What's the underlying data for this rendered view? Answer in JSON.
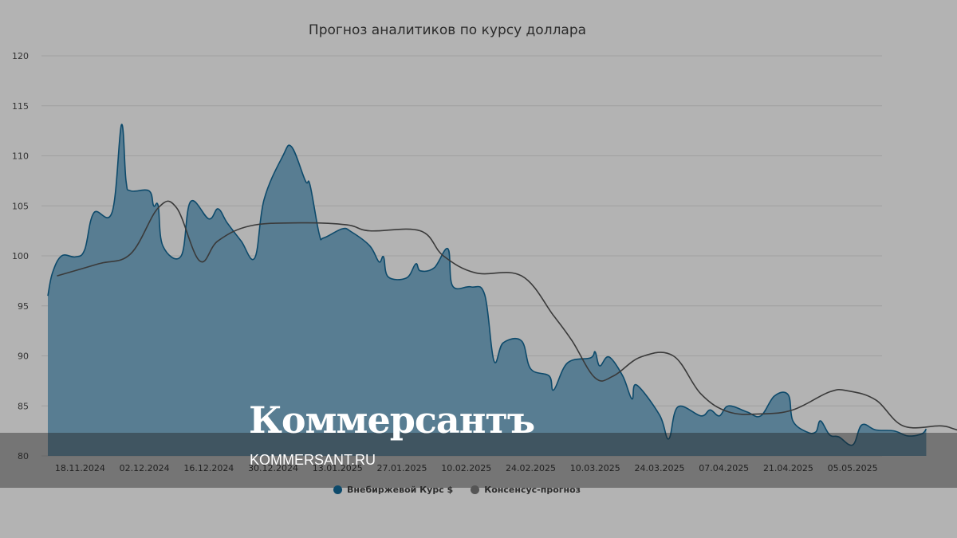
{
  "chart_data": {
    "type": "area",
    "title": "Прогноз аналитиков по курсу доллара",
    "ylim": [
      80,
      120
    ],
    "yticks": [
      "80",
      "85",
      "90",
      "95",
      "100",
      "105",
      "110",
      "115",
      "120"
    ],
    "xticks": [
      "18.11.2024",
      "02.12.2024",
      "16.12.2024",
      "30.12.2024",
      "13.01.2025",
      "27.01.2025",
      "10.02.2025",
      "24.02.2025",
      "10.03.2025",
      "24.03.2025",
      "07.04.2025",
      "21.04.2025",
      "05.05.2025"
    ],
    "x_start": "2024-11-11",
    "x_end": "2025-05-10",
    "grid": true,
    "legend_position": "bottom",
    "series": [
      {
        "name": "Внебиржевой Курс $",
        "type": "area",
        "color": "#0d4a6b",
        "fill": "#587d92",
        "points": [
          [
            "2024-11-11",
            96.0
          ],
          [
            "2024-11-12",
            98.3
          ],
          [
            "2024-11-14",
            100.0
          ],
          [
            "2024-11-17",
            99.9
          ],
          [
            "2024-11-19",
            100.6
          ],
          [
            "2024-11-21",
            104.3
          ],
          [
            "2024-11-25",
            104.4
          ],
          [
            "2024-11-27",
            113.1
          ],
          [
            "2024-11-28",
            107.5
          ],
          [
            "2024-11-29",
            106.5
          ],
          [
            "2024-12-03",
            106.5
          ],
          [
            "2024-12-04",
            105.0
          ],
          [
            "2024-12-05",
            105.0
          ],
          [
            "2024-12-06",
            101.0
          ],
          [
            "2024-12-10",
            100.0
          ],
          [
            "2024-12-12",
            105.4
          ],
          [
            "2024-12-16",
            103.7
          ],
          [
            "2024-12-18",
            104.7
          ],
          [
            "2024-12-20",
            103.3
          ],
          [
            "2024-12-23",
            101.5
          ],
          [
            "2024-12-26",
            99.8
          ],
          [
            "2024-12-28",
            105.6
          ],
          [
            "2025-01-01",
            109.9
          ],
          [
            "2025-01-03",
            110.9
          ],
          [
            "2025-01-06",
            107.5
          ],
          [
            "2025-01-07",
            107.1
          ],
          [
            "2025-01-09",
            102.2
          ],
          [
            "2025-01-10",
            101.8
          ],
          [
            "2025-01-14",
            102.7
          ],
          [
            "2025-01-16",
            102.4
          ],
          [
            "2025-01-20",
            101.0
          ],
          [
            "2025-01-22",
            99.4
          ],
          [
            "2025-01-23",
            99.9
          ],
          [
            "2025-01-24",
            97.9
          ],
          [
            "2025-01-28",
            97.8
          ],
          [
            "2025-01-30",
            99.2
          ],
          [
            "2025-01-31",
            98.5
          ],
          [
            "2025-02-03",
            98.8
          ],
          [
            "2025-02-06",
            100.7
          ],
          [
            "2025-02-07",
            97.0
          ],
          [
            "2025-02-11",
            96.9
          ],
          [
            "2025-02-14",
            96.1
          ],
          [
            "2025-02-16",
            89.5
          ],
          [
            "2025-02-18",
            91.3
          ],
          [
            "2025-02-22",
            91.5
          ],
          [
            "2025-02-24",
            88.7
          ],
          [
            "2025-02-28",
            88.0
          ],
          [
            "2025-03-01",
            86.6
          ],
          [
            "2025-03-04",
            89.3
          ],
          [
            "2025-03-09",
            89.8
          ],
          [
            "2025-03-10",
            90.4
          ],
          [
            "2025-03-11",
            89.0
          ],
          [
            "2025-03-13",
            89.9
          ],
          [
            "2025-03-16",
            88.0
          ],
          [
            "2025-03-18",
            85.7
          ],
          [
            "2025-03-19",
            87.1
          ],
          [
            "2025-03-24",
            84.1
          ],
          [
            "2025-03-26",
            81.7
          ],
          [
            "2025-03-28",
            84.9
          ],
          [
            "2025-04-02",
            84.0
          ],
          [
            "2025-04-04",
            84.6
          ],
          [
            "2025-04-06",
            84.0
          ],
          [
            "2025-04-08",
            85.0
          ],
          [
            "2025-04-12",
            84.4
          ],
          [
            "2025-04-15",
            84.0
          ],
          [
            "2025-04-18",
            86.0
          ],
          [
            "2025-04-21",
            86.1
          ],
          [
            "2025-04-22",
            83.5
          ],
          [
            "2025-04-25",
            82.4
          ],
          [
            "2025-04-27",
            82.4
          ],
          [
            "2025-04-28",
            83.5
          ],
          [
            "2025-04-30",
            82.1
          ],
          [
            "2025-05-02",
            81.9
          ],
          [
            "2025-05-05",
            81.1
          ],
          [
            "2025-05-07",
            83.1
          ],
          [
            "2025-05-10",
            82.6
          ],
          [
            "2025-05-14",
            82.5
          ],
          [
            "2025-05-17",
            82.0
          ],
          [
            "2025-05-20",
            82.2
          ],
          [
            "2025-05-21",
            82.7
          ]
        ]
      },
      {
        "name": "Консенсус-прогноз",
        "type": "line",
        "color": "#3a3a3a",
        "points": [
          [
            "2024-11-13",
            98.0
          ],
          [
            "2024-11-22",
            99.2
          ],
          [
            "2024-11-29",
            100.2
          ],
          [
            "2024-12-05",
            104.8
          ],
          [
            "2024-12-09",
            104.8
          ],
          [
            "2024-12-14",
            99.5
          ],
          [
            "2024-12-18",
            101.5
          ],
          [
            "2024-12-25",
            103.0
          ],
          [
            "2025-01-05",
            103.3
          ],
          [
            "2025-01-15",
            103.1
          ],
          [
            "2025-01-20",
            102.5
          ],
          [
            "2025-01-31",
            102.5
          ],
          [
            "2025-02-05",
            100.0
          ],
          [
            "2025-02-12",
            98.3
          ],
          [
            "2025-02-22",
            98.0
          ],
          [
            "2025-03-01",
            94.0
          ],
          [
            "2025-03-05",
            91.5
          ],
          [
            "2025-03-10",
            87.8
          ],
          [
            "2025-03-14",
            88.0
          ],
          [
            "2025-03-20",
            89.9
          ],
          [
            "2025-03-27",
            90.0
          ],
          [
            "2025-04-02",
            86.2
          ],
          [
            "2025-04-08",
            84.4
          ],
          [
            "2025-04-15",
            84.2
          ],
          [
            "2025-04-22",
            84.6
          ],
          [
            "2025-04-30",
            86.4
          ],
          [
            "2025-05-04",
            86.5
          ],
          [
            "2025-05-10",
            85.6
          ],
          [
            "2025-05-16",
            83.0
          ],
          [
            "2025-05-24",
            83.0
          ],
          [
            "2025-05-27",
            82.7
          ],
          [
            "2025-05-30",
            82.2
          ]
        ]
      }
    ]
  },
  "watermark": {
    "logo": "Коммерсантъ",
    "url": "KOMMERSANT.RU"
  }
}
